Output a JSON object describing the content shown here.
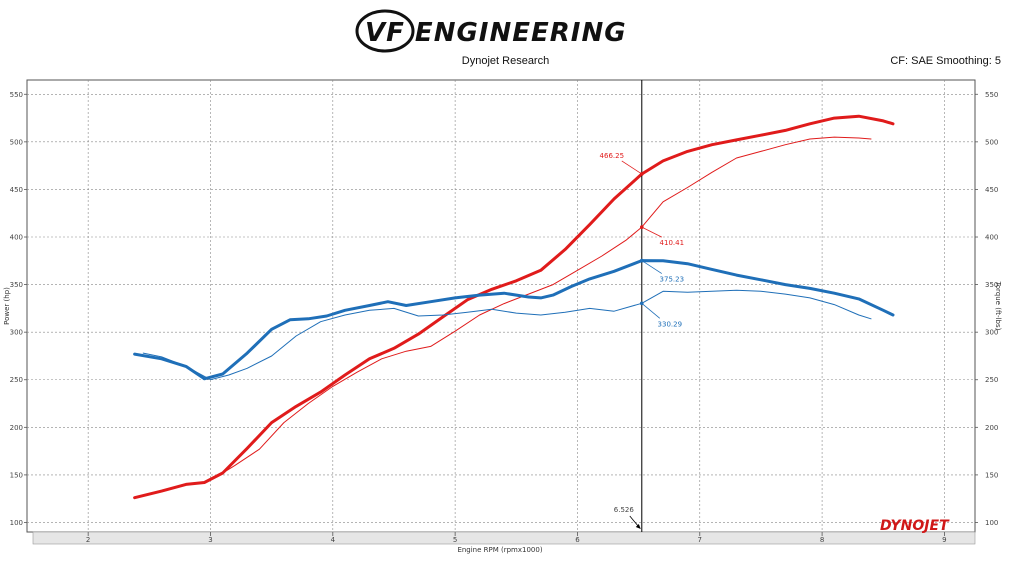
{
  "header": {
    "logo_text": "VF ENGINEERING",
    "subtitle": "Dynojet Research",
    "settings": "CF: SAE Smoothing: 5",
    "brand": "DYNOJET"
  },
  "colors": {
    "power": "#e01b1b",
    "torque": "#1f6fb8",
    "grid": "#888888"
  },
  "chart_data": {
    "type": "line",
    "xlabel": "Engine RPM (rpmx1000)",
    "ylabel_left": "Power (hp)",
    "ylabel_right": "Torque (ft-lbs)",
    "xlim": [
      1.5,
      9.25
    ],
    "ylim": [
      90,
      565
    ],
    "x_ticks": [
      "2",
      "3",
      "4",
      "5",
      "6",
      "7",
      "8",
      "9"
    ],
    "y_ticks": [
      "100",
      "150",
      "200",
      "250",
      "300",
      "350",
      "400",
      "450",
      "500",
      "550"
    ],
    "grid": true,
    "cursor": {
      "x": 6.526,
      "label": "6.526"
    },
    "annotations": [
      {
        "text": "466.25",
        "x": 6.526,
        "y": 466.25,
        "series": "power-modified"
      },
      {
        "text": "410.41",
        "x": 6.526,
        "y": 410.41,
        "series": "power-stock"
      },
      {
        "text": "375.23",
        "x": 6.526,
        "y": 375.23,
        "series": "torque-modified"
      },
      {
        "text": "330.29",
        "x": 6.526,
        "y": 330.29,
        "series": "torque-stock"
      }
    ],
    "series": [
      {
        "id": "power-modified",
        "color": "#e01b1b",
        "width": 3,
        "x": [
          2.38,
          2.6,
          2.8,
          2.95,
          3.1,
          3.3,
          3.5,
          3.7,
          3.9,
          4.1,
          4.3,
          4.5,
          4.7,
          4.9,
          5.1,
          5.3,
          5.5,
          5.7,
          5.9,
          6.1,
          6.3,
          6.526,
          6.7,
          6.9,
          7.1,
          7.3,
          7.5,
          7.7,
          7.9,
          8.1,
          8.3,
          8.5,
          8.58
        ],
        "y": [
          126,
          133,
          140,
          142,
          152,
          178,
          205,
          222,
          237,
          255,
          272,
          283,
          298,
          316,
          334,
          345,
          354,
          365,
          387,
          413,
          440,
          466.25,
          480,
          490,
          497,
          502,
          507,
          512,
          519,
          525,
          527,
          522,
          519
        ]
      },
      {
        "id": "power-stock",
        "color": "#e01b1b",
        "width": 1,
        "x": [
          3.05,
          3.2,
          3.4,
          3.6,
          3.8,
          4.0,
          4.2,
          4.4,
          4.6,
          4.8,
          5.0,
          5.2,
          5.4,
          5.6,
          5.8,
          6.0,
          6.2,
          6.4,
          6.526,
          6.7,
          6.9,
          7.1,
          7.3,
          7.5,
          7.7,
          7.9,
          8.1,
          8.3,
          8.4
        ],
        "y": [
          148,
          160,
          177,
          205,
          225,
          243,
          258,
          272,
          280,
          285,
          301,
          318,
          330,
          340,
          350,
          365,
          380,
          397,
          410.41,
          437,
          452,
          468,
          483,
          490,
          497,
          503,
          505,
          504,
          503
        ]
      },
      {
        "id": "torque-modified",
        "color": "#1f6fb8",
        "width": 3,
        "x": [
          2.38,
          2.6,
          2.8,
          2.95,
          3.1,
          3.3,
          3.5,
          3.65,
          3.8,
          3.95,
          4.1,
          4.3,
          4.45,
          4.6,
          4.8,
          5.0,
          5.2,
          5.4,
          5.6,
          5.7,
          5.8,
          5.95,
          6.1,
          6.3,
          6.526,
          6.7,
          6.9,
          7.1,
          7.3,
          7.5,
          7.7,
          7.9,
          8.1,
          8.3,
          8.5,
          8.58
        ],
        "y": [
          277,
          272,
          264,
          251,
          256,
          278,
          303,
          313,
          314,
          317,
          323,
          328,
          332,
          328,
          332,
          336,
          339,
          341,
          337,
          336,
          339,
          348,
          356,
          364,
          375.23,
          375,
          372,
          366,
          360,
          355,
          350,
          346,
          341,
          335,
          323,
          318
        ]
      },
      {
        "id": "torque-stock",
        "color": "#1f6fb8",
        "width": 1,
        "x": [
          2.45,
          2.6,
          2.8,
          3.0,
          3.15,
          3.3,
          3.5,
          3.7,
          3.9,
          4.1,
          4.3,
          4.5,
          4.7,
          4.9,
          5.1,
          5.3,
          5.5,
          5.7,
          5.9,
          6.1,
          6.3,
          6.526,
          6.7,
          6.9,
          7.1,
          7.3,
          7.5,
          7.7,
          7.9,
          8.1,
          8.3,
          8.4
        ],
        "y": [
          278,
          274,
          264,
          250,
          255,
          262,
          275,
          296,
          311,
          318,
          323,
          325,
          317,
          318,
          321,
          324,
          320,
          318,
          321,
          325,
          322,
          330.29,
          343,
          342,
          343,
          344,
          343,
          340,
          336,
          329,
          318,
          314
        ]
      }
    ]
  }
}
